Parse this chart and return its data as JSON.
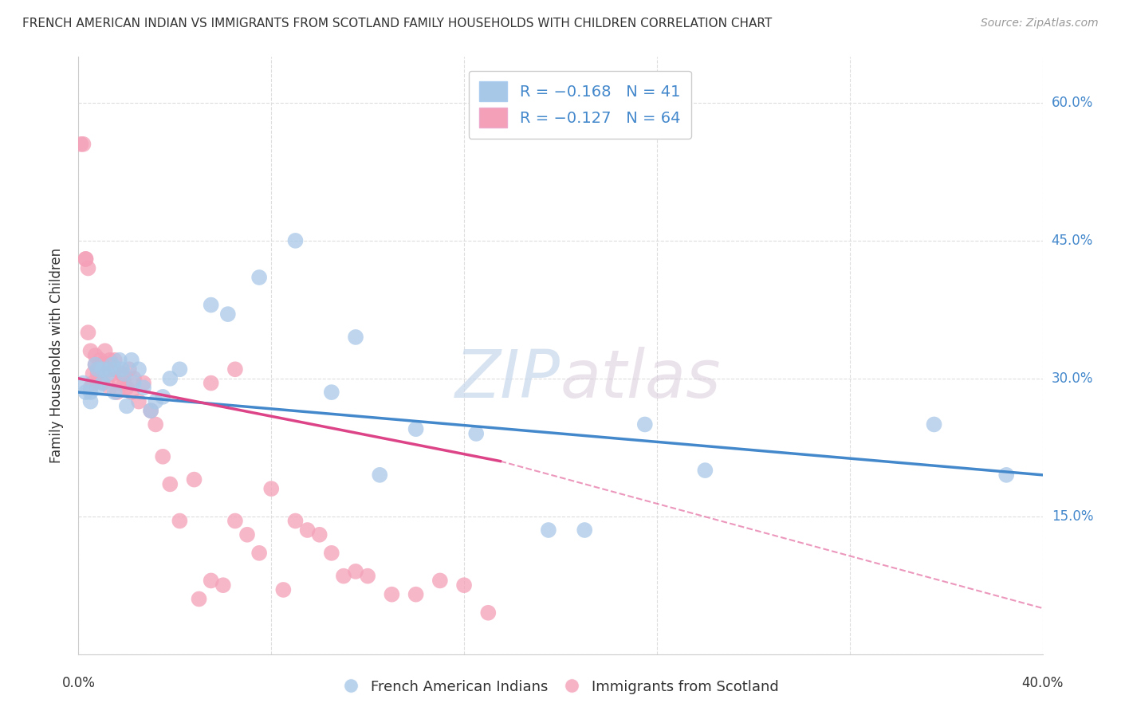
{
  "title": "FRENCH AMERICAN INDIAN VS IMMIGRANTS FROM SCOTLAND FAMILY HOUSEHOLDS WITH CHILDREN CORRELATION CHART",
  "source": "Source: ZipAtlas.com",
  "ylabel": "Family Households with Children",
  "xlabel_blue": "French American Indians",
  "xlabel_pink": "Immigrants from Scotland",
  "legend_blue_r": "-0.168",
  "legend_blue_n": "41",
  "legend_pink_r": "-0.127",
  "legend_pink_n": "64",
  "watermark_zip": "ZIP",
  "watermark_atlas": "atlas",
  "xlim": [
    0.0,
    0.4
  ],
  "ylim": [
    0.0,
    0.65
  ],
  "yticks": [
    0.0,
    0.15,
    0.3,
    0.45,
    0.6
  ],
  "xticks": [
    0.0,
    0.08,
    0.16,
    0.24,
    0.32,
    0.4
  ],
  "blue_color": "#a8c8e8",
  "pink_color": "#f4a0b8",
  "blue_line_color": "#4488cc",
  "pink_line_color": "#dd4488",
  "title_color": "#333333",
  "source_color": "#999999",
  "axis_label_color": "#4488cc",
  "grid_color": "#dddddd",
  "blue_x": [
    0.002,
    0.003,
    0.005,
    0.005,
    0.007,
    0.008,
    0.008,
    0.01,
    0.01,
    0.012,
    0.013,
    0.014,
    0.015,
    0.017,
    0.018,
    0.019,
    0.02,
    0.022,
    0.023,
    0.025,
    0.027,
    0.03,
    0.032,
    0.035,
    0.038,
    0.042,
    0.055,
    0.062,
    0.075,
    0.09,
    0.105,
    0.115,
    0.125,
    0.14,
    0.165,
    0.195,
    0.21,
    0.235,
    0.26,
    0.355,
    0.385
  ],
  "blue_y": [
    0.295,
    0.285,
    0.285,
    0.275,
    0.315,
    0.31,
    0.29,
    0.31,
    0.295,
    0.305,
    0.31,
    0.315,
    0.285,
    0.32,
    0.31,
    0.305,
    0.27,
    0.32,
    0.295,
    0.31,
    0.29,
    0.265,
    0.275,
    0.28,
    0.3,
    0.31,
    0.38,
    0.37,
    0.41,
    0.45,
    0.285,
    0.345,
    0.195,
    0.245,
    0.24,
    0.135,
    0.135,
    0.25,
    0.2,
    0.25,
    0.195
  ],
  "pink_x": [
    0.001,
    0.002,
    0.003,
    0.003,
    0.004,
    0.004,
    0.005,
    0.005,
    0.006,
    0.006,
    0.007,
    0.007,
    0.008,
    0.008,
    0.009,
    0.009,
    0.01,
    0.01,
    0.011,
    0.011,
    0.012,
    0.013,
    0.013,
    0.014,
    0.015,
    0.015,
    0.016,
    0.017,
    0.018,
    0.019,
    0.02,
    0.021,
    0.022,
    0.023,
    0.025,
    0.027,
    0.03,
    0.032,
    0.035,
    0.038,
    0.042,
    0.048,
    0.055,
    0.065,
    0.08,
    0.09,
    0.1,
    0.11,
    0.12,
    0.13,
    0.14,
    0.15,
    0.16,
    0.17,
    0.095,
    0.105,
    0.115,
    0.065,
    0.07,
    0.075,
    0.055,
    0.06,
    0.05,
    0.085
  ],
  "pink_y": [
    0.555,
    0.555,
    0.43,
    0.43,
    0.42,
    0.35,
    0.33,
    0.29,
    0.305,
    0.295,
    0.325,
    0.315,
    0.31,
    0.305,
    0.32,
    0.315,
    0.295,
    0.31,
    0.33,
    0.31,
    0.315,
    0.32,
    0.29,
    0.305,
    0.32,
    0.31,
    0.285,
    0.295,
    0.305,
    0.295,
    0.29,
    0.31,
    0.285,
    0.3,
    0.275,
    0.295,
    0.265,
    0.25,
    0.215,
    0.185,
    0.145,
    0.19,
    0.295,
    0.31,
    0.18,
    0.145,
    0.13,
    0.085,
    0.085,
    0.065,
    0.065,
    0.08,
    0.075,
    0.045,
    0.135,
    0.11,
    0.09,
    0.145,
    0.13,
    0.11,
    0.08,
    0.075,
    0.06,
    0.07
  ],
  "blue_line_x0": 0.0,
  "blue_line_y0": 0.285,
  "blue_line_x1": 0.4,
  "blue_line_y1": 0.195,
  "pink_line_x0": 0.0,
  "pink_line_y0": 0.3,
  "pink_line_solid_x1": 0.175,
  "pink_line_solid_y1": 0.21,
  "pink_line_dash_x1": 0.4,
  "pink_line_dash_y1": 0.05
}
